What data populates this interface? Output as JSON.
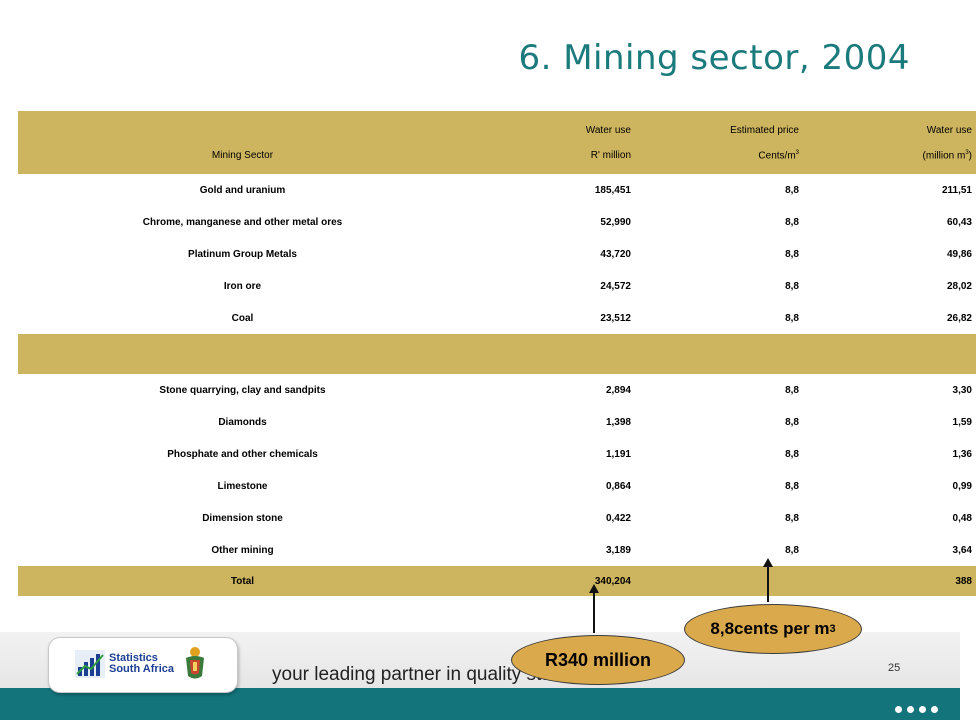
{
  "title": "6. Mining sector, 2004",
  "table": {
    "header": {
      "col1": "Mining Sector",
      "col2_top": "Water use",
      "col2_bottom": "R' million",
      "col3_top": "Estimated price",
      "col3_bottom": "Cents/m",
      "col3_sup": "3",
      "col4_top": "Water use",
      "col4_bottom_pre": "(million m",
      "col4_sup": "3",
      "col4_bottom_post": ")"
    },
    "rows": [
      {
        "sector": "Gold and uranium",
        "water_use": "185,451",
        "price": "8,8",
        "volume": "211,51"
      },
      {
        "sector": "Chrome, manganese and other metal ores",
        "water_use": "52,990",
        "price": "8,8",
        "volume": "60,43"
      },
      {
        "sector": "Platinum Group Metals",
        "water_use": "43,720",
        "price": "8,8",
        "volume": "49,86"
      },
      {
        "sector": "Iron ore",
        "water_use": "24,572",
        "price": "8,8",
        "volume": "28,02"
      },
      {
        "sector": "Coal",
        "water_use": "23,512",
        "price": "8,8",
        "volume": "26,82"
      },
      {
        "sector": "Stone quarrying, clay and sandpits",
        "water_use": "2,894",
        "price": "8,8",
        "volume": "3,30"
      },
      {
        "sector": "Diamonds",
        "water_use": "1,398",
        "price": "8,8",
        "volume": "1,59"
      },
      {
        "sector": "Phosphate and other chemicals",
        "water_use": "1,191",
        "price": "8,8",
        "volume": "1,36"
      },
      {
        "sector": "Limestone",
        "water_use": "0,864",
        "price": "8,8",
        "volume": "0,99"
      },
      {
        "sector": "Dimension stone",
        "water_use": "0,422",
        "price": "8,8",
        "volume": "0,48"
      },
      {
        "sector": "Other mining",
        "water_use": "3,189",
        "price": "8,8",
        "volume": "3,64"
      }
    ],
    "total": {
      "label": "Total",
      "water_use": "340,204",
      "price": "",
      "volume": "388"
    }
  },
  "callouts": {
    "value_label": "R340 million",
    "price_label_pre": "8,8cents per m",
    "price_label_sup": "3"
  },
  "footer": {
    "logo_line1": "Statistics",
    "logo_line2": "South Africa",
    "tagline": "your leading partner in quality statis",
    "page_number": "25"
  },
  "colors": {
    "title": "#1a7a7c",
    "table_band": "#cdb45e",
    "callout_fill": "#d9a94c",
    "footer_bar": "#13747c"
  }
}
